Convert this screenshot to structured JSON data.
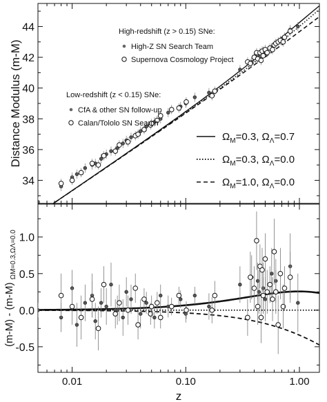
{
  "chart_data": [
    {
      "type": "scatter",
      "title": "",
      "xlabel": "",
      "ylabel": "Distance Modulus (m-M)",
      "x_scale": "log",
      "xlim": [
        0.005,
        1.5
      ],
      "ylim": [
        32.5,
        45.5
      ],
      "yticks": [
        34,
        36,
        38,
        40,
        42,
        44
      ],
      "legend_groups": [
        {
          "header": "High-redshift (z > 0.15) SNe:",
          "entries": [
            "High-Z SN Search Team",
            "Supernova Cosmology Project"
          ],
          "placement": "top-center"
        },
        {
          "header": "Low-redshift (z < 0.15) SNe:",
          "entries": [
            "CfA & other SN follow-up",
            "Calan/Tololo SN Search"
          ],
          "placement": "middle-left"
        }
      ],
      "lines_legend": [
        {
          "style": "solid",
          "omega_m": "0.3",
          "omega_l": "0.7"
        },
        {
          "style": "dotted",
          "omega_m": "0.3",
          "omega_l": "0.0"
        },
        {
          "style": "dashed",
          "omega_m": "1.0",
          "omega_l": "0.0"
        }
      ],
      "models": [
        {
          "style": "solid",
          "omega_m": 0.3,
          "omega_l": 0.7
        },
        {
          "style": "dotted",
          "omega_m": 0.3,
          "omega_l": 0.0
        },
        {
          "style": "dashed",
          "omega_m": 1.0,
          "omega_l": 0.0
        }
      ],
      "series": [
        {
          "name": "High-Z SN Search Team",
          "marker": "filled",
          "points": [
            [
              0.16,
              39.7
            ],
            [
              0.3,
              41.2
            ],
            [
              0.38,
              41.7
            ],
            [
              0.43,
              42.1
            ],
            [
              0.44,
              42.0
            ],
            [
              0.48,
              42.4
            ],
            [
              0.5,
              42.3
            ],
            [
              0.57,
              42.6
            ],
            [
              0.62,
              42.9
            ],
            [
              0.83,
              43.8
            ],
            [
              0.97,
              44.0
            ]
          ]
        },
        {
          "name": "Supernova Cosmology Project",
          "marker": "open",
          "points": [
            [
              0.17,
              39.5
            ],
            [
              0.18,
              39.8
            ],
            [
              0.35,
              41.7
            ],
            [
              0.37,
              41.6
            ],
            [
              0.4,
              42.0
            ],
            [
              0.42,
              42.3
            ],
            [
              0.43,
              41.9
            ],
            [
              0.45,
              42.3
            ],
            [
              0.46,
              41.8
            ],
            [
              0.47,
              42.4
            ],
            [
              0.48,
              42.1
            ],
            [
              0.5,
              42.5
            ],
            [
              0.52,
              42.3
            ],
            [
              0.55,
              42.6
            ],
            [
              0.58,
              42.5
            ],
            [
              0.6,
              42.8
            ],
            [
              0.62,
              42.9
            ],
            [
              0.65,
              43.0
            ],
            [
              0.68,
              43.1
            ],
            [
              0.72,
              43.0
            ],
            [
              0.74,
              43.3
            ],
            [
              0.83,
              43.7
            ]
          ]
        },
        {
          "name": "CfA & other SN follow-up",
          "marker": "filled",
          "points": [
            [
              0.005,
              32.6
            ],
            [
              0.008,
              33.6
            ],
            [
              0.01,
              34.2
            ],
            [
              0.011,
              34.4
            ],
            [
              0.013,
              34.8
            ],
            [
              0.015,
              35.0
            ],
            [
              0.016,
              35.1
            ],
            [
              0.018,
              35.4
            ],
            [
              0.02,
              35.7
            ],
            [
              0.022,
              35.9
            ],
            [
              0.025,
              36.1
            ],
            [
              0.028,
              36.4
            ],
            [
              0.03,
              36.6
            ],
            [
              0.033,
              36.8
            ],
            [
              0.04,
              37.2
            ],
            [
              0.045,
              37.5
            ],
            [
              0.053,
              37.8
            ],
            [
              0.06,
              38.0
            ],
            [
              0.07,
              38.4
            ],
            [
              0.09,
              38.8
            ],
            [
              0.1,
              39.0
            ],
            [
              0.12,
              39.4
            ]
          ]
        },
        {
          "name": "Calan/Tololo SN Search",
          "marker": "open",
          "points": [
            [
              0.008,
              33.8
            ],
            [
              0.01,
              34.0
            ],
            [
              0.012,
              34.5
            ],
            [
              0.015,
              35.1
            ],
            [
              0.017,
              35.0
            ],
            [
              0.019,
              35.6
            ],
            [
              0.024,
              35.9
            ],
            [
              0.026,
              36.3
            ],
            [
              0.031,
              36.5
            ],
            [
              0.036,
              36.9
            ],
            [
              0.038,
              37.0
            ],
            [
              0.043,
              37.3
            ],
            [
              0.049,
              37.6
            ],
            [
              0.05,
              37.7
            ],
            [
              0.056,
              37.9
            ],
            [
              0.06,
              38.2
            ],
            [
              0.075,
              38.6
            ],
            [
              0.087,
              38.7
            ],
            [
              0.101,
              39.1
            ]
          ]
        }
      ]
    },
    {
      "type": "scatter",
      "title": "",
      "xlabel": "z",
      "ylabel": "(m-M) - (m-M)",
      "ylabel_sub": "ΩM=0.3,ΩΛ=0.0",
      "x_scale": "log",
      "xlim": [
        0.005,
        1.5
      ],
      "ylim": [
        -0.85,
        1.45
      ],
      "xticks": [
        0.01,
        0.1,
        1.0
      ],
      "xtick_labels": [
        "0.01",
        "0.10",
        "1.00"
      ],
      "yticks": [
        -0.5,
        0.0,
        0.5,
        1.0
      ],
      "ytick_labels": [
        "-0.5",
        "0.0",
        "0.5",
        "1.0"
      ],
      "series": [
        {
          "name": "High-Z SN Search Team",
          "marker": "filled",
          "points": [
            [
              0.16,
              0.05,
              0.18
            ],
            [
              0.3,
              0.35,
              0.25
            ],
            [
              0.38,
              0.45,
              0.3
            ],
            [
              0.43,
              0.4,
              0.25
            ],
            [
              0.44,
              0.25,
              0.3
            ],
            [
              0.48,
              0.3,
              0.35
            ],
            [
              0.5,
              0.15,
              0.3
            ],
            [
              0.57,
              0.5,
              0.35
            ],
            [
              0.62,
              0.4,
              0.3
            ],
            [
              0.83,
              0.6,
              0.45
            ],
            [
              0.97,
              0.1,
              0.4
            ]
          ]
        },
        {
          "name": "Supernova Cosmology Project",
          "marker": "open",
          "points": [
            [
              0.17,
              0.0,
              0.18
            ],
            [
              0.18,
              0.2,
              0.2
            ],
            [
              0.35,
              -0.1,
              0.25
            ],
            [
              0.37,
              0.45,
              0.35
            ],
            [
              0.4,
              0.3,
              0.3
            ],
            [
              0.42,
              0.95,
              0.4
            ],
            [
              0.43,
              0.05,
              0.25
            ],
            [
              0.45,
              0.6,
              0.3
            ],
            [
              0.46,
              -0.1,
              0.35
            ],
            [
              0.47,
              0.55,
              0.3
            ],
            [
              0.48,
              0.2,
              0.25
            ],
            [
              0.5,
              0.7,
              0.35
            ],
            [
              0.52,
              0.25,
              0.3
            ],
            [
              0.55,
              0.35,
              0.25
            ],
            [
              0.58,
              0.15,
              0.3
            ],
            [
              0.6,
              0.8,
              0.45
            ],
            [
              0.62,
              0.25,
              0.3
            ],
            [
              0.65,
              -0.2,
              0.4
            ],
            [
              0.68,
              0.5,
              0.35
            ],
            [
              0.72,
              0.05,
              0.3
            ],
            [
              0.74,
              0.3,
              0.3
            ],
            [
              0.83,
              0.45,
              0.35
            ]
          ]
        },
        {
          "name": "CfA & other SN follow-up",
          "marker": "filled",
          "points": [
            [
              0.005,
              0.0,
              0.1
            ],
            [
              0.008,
              -0.1,
              0.2
            ],
            [
              0.01,
              0.3,
              0.25
            ],
            [
              0.011,
              -0.2,
              0.3
            ],
            [
              0.013,
              0.1,
              0.25
            ],
            [
              0.015,
              0.2,
              0.3
            ],
            [
              0.016,
              -0.15,
              0.25
            ],
            [
              0.018,
              0.1,
              0.2
            ],
            [
              0.02,
              0.05,
              0.25
            ],
            [
              0.022,
              0.35,
              0.3
            ],
            [
              0.025,
              0.0,
              0.2
            ],
            [
              0.028,
              -0.1,
              0.25
            ],
            [
              0.03,
              0.25,
              0.2
            ],
            [
              0.033,
              0.15,
              0.2
            ],
            [
              0.04,
              -0.05,
              0.2
            ],
            [
              0.045,
              0.1,
              0.15
            ],
            [
              0.053,
              -0.1,
              0.15
            ],
            [
              0.06,
              0.2,
              0.15
            ],
            [
              0.07,
              0.05,
              0.15
            ],
            [
              0.09,
              0.15,
              0.12
            ],
            [
              0.1,
              -0.05,
              0.12
            ],
            [
              0.12,
              0.2,
              0.12
            ]
          ]
        },
        {
          "name": "Calan/Tololo SN Search",
          "marker": "open",
          "points": [
            [
              0.008,
              0.2,
              0.3
            ],
            [
              0.01,
              0.05,
              0.25
            ],
            [
              0.012,
              -0.1,
              0.3
            ],
            [
              0.015,
              0.15,
              0.25
            ],
            [
              0.017,
              -0.25,
              0.3
            ],
            [
              0.019,
              0.35,
              0.25
            ],
            [
              0.024,
              -0.05,
              0.2
            ],
            [
              0.026,
              0.1,
              0.25
            ],
            [
              0.031,
              0.0,
              0.2
            ],
            [
              0.036,
              0.3,
              0.2
            ],
            [
              0.038,
              -0.2,
              0.2
            ],
            [
              0.043,
              0.15,
              0.15
            ],
            [
              0.049,
              -0.05,
              0.15
            ],
            [
              0.05,
              0.05,
              0.15
            ],
            [
              0.056,
              0.1,
              0.15
            ],
            [
              0.06,
              -0.1,
              0.15
            ],
            [
              0.075,
              0.05,
              0.12
            ],
            [
              0.087,
              0.2,
              0.12
            ],
            [
              0.101,
              0.0,
              0.12
            ]
          ]
        }
      ]
    }
  ]
}
